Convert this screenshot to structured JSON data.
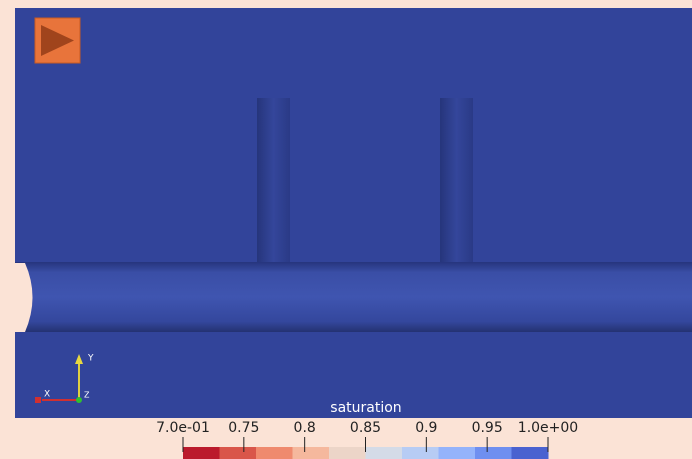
{
  "colorbar": {
    "title": "saturation",
    "ticks": [
      "7.0e-01",
      "0.75",
      "0.8",
      "0.85",
      "0.9",
      "0.95",
      "1.0e+00"
    ],
    "colors": [
      "#bb1a2c",
      "#d9564a",
      "#ef8a6e",
      "#f5b89d",
      "#ecd5c8",
      "#d4dbe7",
      "#b7ccf4",
      "#94b3fb",
      "#6f8ff0",
      "#4a62d0"
    ]
  },
  "axes": {
    "x": "X",
    "y": "Y",
    "z": "Z"
  }
}
